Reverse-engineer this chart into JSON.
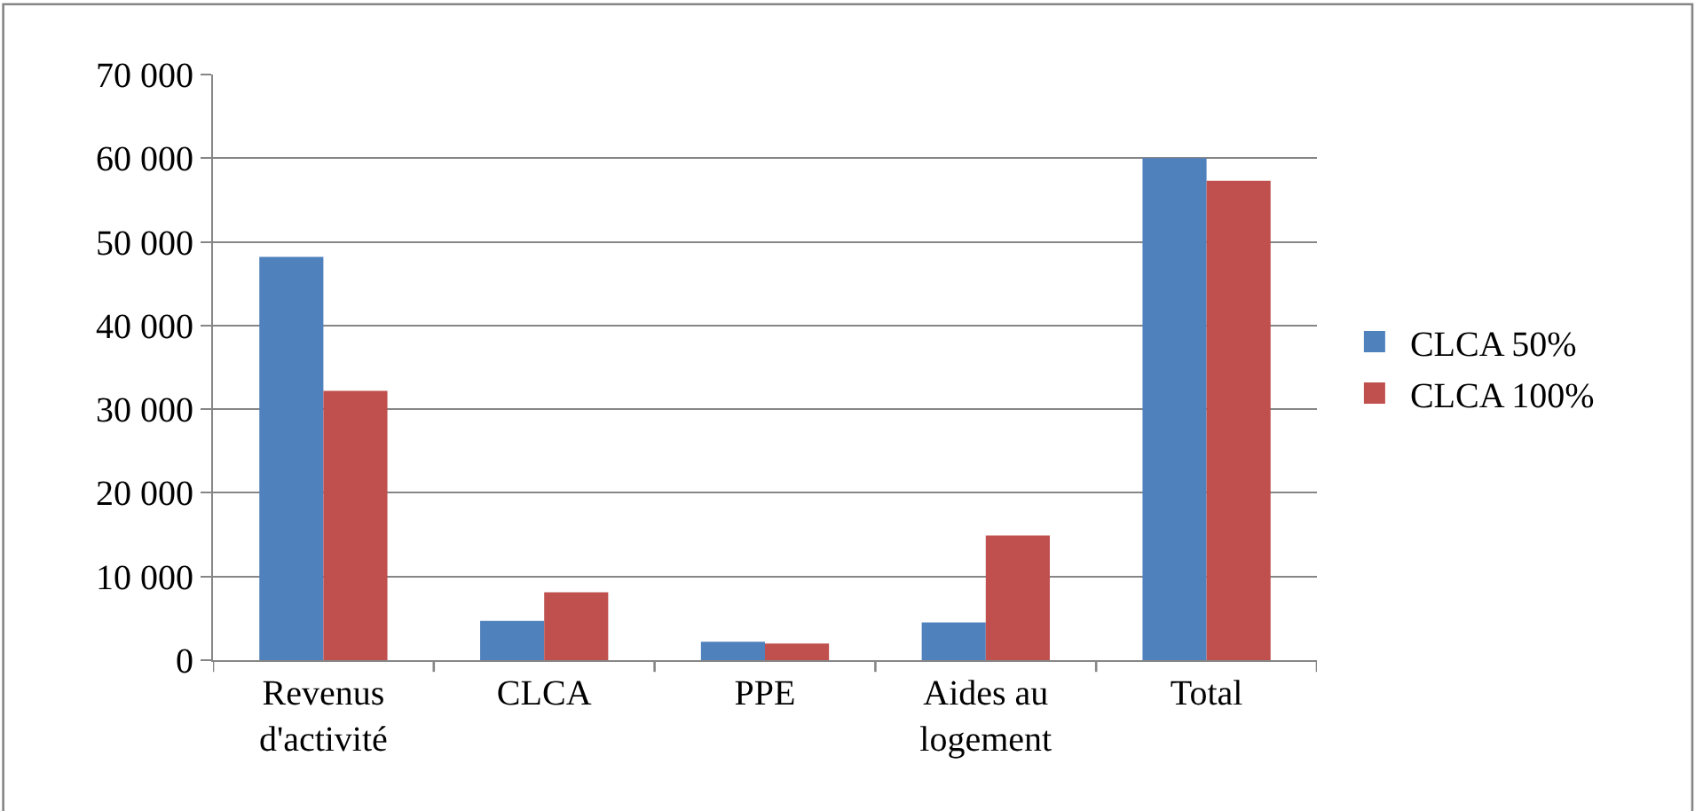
{
  "chart_data": {
    "type": "bar",
    "categories": [
      "Revenus d'activité",
      "CLCA",
      "PPE",
      "Aides au logement",
      "Total"
    ],
    "series": [
      {
        "name": "CLCA 50%",
        "color": "#4f81bd",
        "values": [
          48200,
          4700,
          2200,
          4500,
          60000
        ]
      },
      {
        "name": "CLCA 100%",
        "color": "#c0504d",
        "values": [
          32200,
          8100,
          2000,
          14900,
          57300
        ]
      }
    ],
    "ylim": [
      0,
      70000
    ],
    "yticks": [
      {
        "value": 0,
        "label": "0"
      },
      {
        "value": 10000,
        "label": "10 000"
      },
      {
        "value": 20000,
        "label": "20 000"
      },
      {
        "value": 30000,
        "label": "30 000"
      },
      {
        "value": 40000,
        "label": "40 000"
      },
      {
        "value": 50000,
        "label": "50 000"
      },
      {
        "value": 60000,
        "label": "60 000"
      },
      {
        "value": 70000,
        "label": "70 000"
      }
    ],
    "grid": "y",
    "legend": "right"
  }
}
